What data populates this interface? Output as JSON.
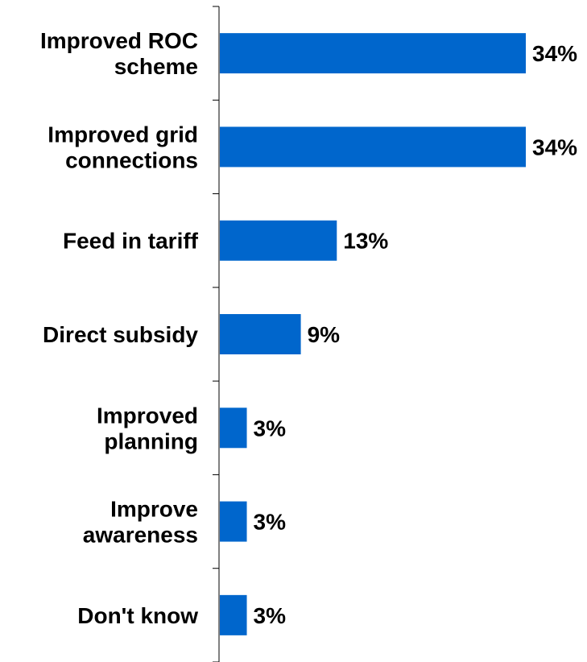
{
  "chart_data": {
    "type": "bar",
    "orientation": "horizontal",
    "categories": [
      [
        "Improved ROC",
        "scheme"
      ],
      [
        "Improved grid",
        "connections"
      ],
      [
        "Feed in tariff"
      ],
      [
        "Direct subsidy"
      ],
      [
        "Improved",
        "planning"
      ],
      [
        "Improve",
        "awareness"
      ],
      [
        "Don't know"
      ]
    ],
    "values": [
      34,
      34,
      13,
      9,
      3,
      3,
      3
    ],
    "value_labels": [
      "34%",
      "34%",
      "13%",
      "9%",
      "3%",
      "3%",
      "3%"
    ],
    "unit": "%",
    "xlim": [
      0,
      34
    ],
    "grid": false,
    "legend": "none",
    "bar_color": "#0066CC",
    "axis_color": "#000000"
  }
}
